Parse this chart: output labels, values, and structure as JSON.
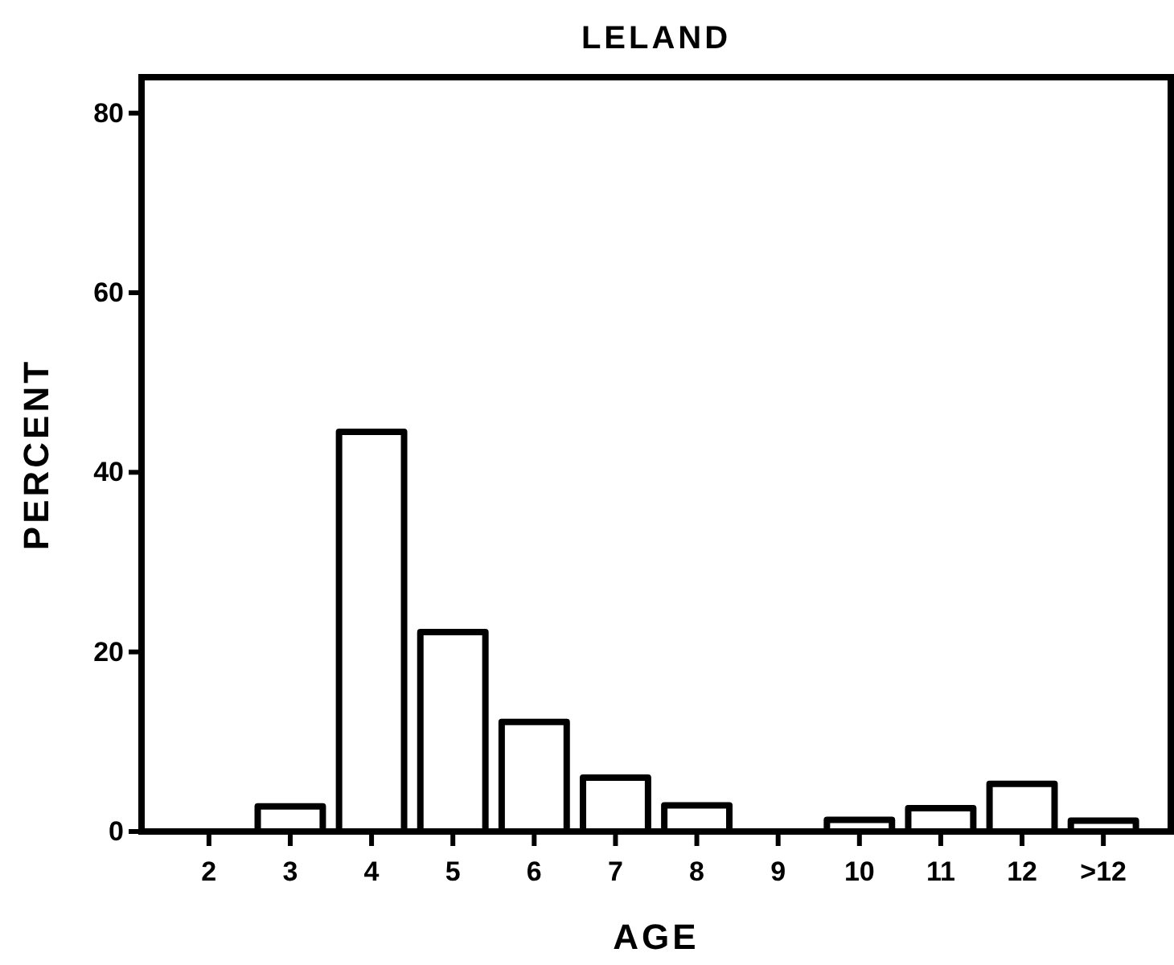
{
  "chart_data": {
    "type": "bar",
    "title": "LELAND",
    "xlabel": "AGE",
    "ylabel": "PERCENT",
    "categories": [
      "2",
      "3",
      "4",
      "5",
      "6",
      "7",
      "8",
      "9",
      "10",
      "11",
      "12",
      ">12"
    ],
    "values": [
      0,
      2.8,
      44.5,
      22.2,
      12.2,
      6,
      2.9,
      0,
      1.3,
      2.6,
      5.3,
      1.2
    ],
    "color": "#ffffff",
    "ylim": [
      0,
      84
    ],
    "yticks": [
      0,
      20,
      40,
      60,
      80
    ],
    "grid": false
  }
}
